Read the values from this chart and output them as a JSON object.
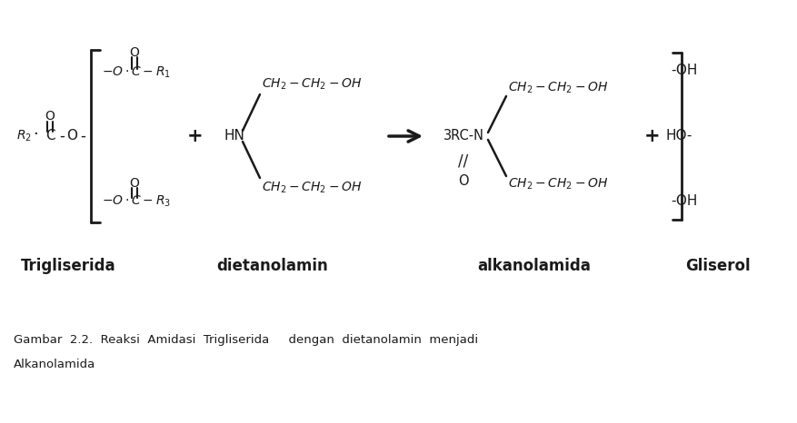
{
  "bg_color": "#ffffff",
  "text_color": "#1a1a1a",
  "figsize": [
    8.78,
    4.66
  ],
  "dpi": 100,
  "caption": "Gambar  2.2.  Reaksi  Amidasi  Trigliserida     dengan  dietanolamin  menjadi",
  "caption2": "Alkanolamida",
  "label_trigliserida": "Trigliserida",
  "label_dietanolamin": "dietanolamin",
  "label_alkanolamida": "alkanolamida",
  "label_gliserol": "Gliserol"
}
